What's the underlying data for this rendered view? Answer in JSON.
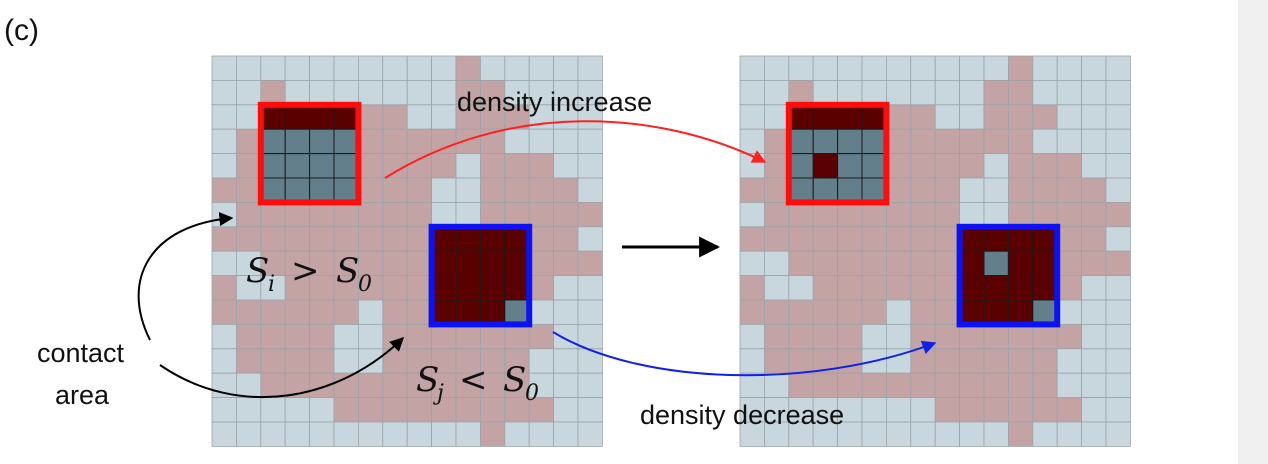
{
  "panel_label": "(c)",
  "labels": {
    "density_increase": "density increase",
    "density_decrease": "density decrease",
    "contact_line1": "contact",
    "contact_line2": "area",
    "cond_i": {
      "S": "S",
      "sub": "i",
      "op": ">",
      "S0": "S",
      "sub0": "0"
    },
    "cond_j": {
      "S": "S",
      "sub": "j",
      "op": "<",
      "S0": "S",
      "sub0": "0"
    }
  },
  "colors": {
    "empty": "#c8d7de",
    "material": "#c3a3a4",
    "void_in_box": "#637f8c",
    "dense": "#5a0000",
    "grid_line": "#9aa4a8",
    "box_red": "#ff0d0d",
    "box_blue": "#0b12f5",
    "arrow_red": "#ff2020",
    "arrow_blue": "#1020e8",
    "arrow_black": "#000000"
  },
  "grid": {
    "cols": 16,
    "rows": 16,
    "left_map": [
      "EEEEEEEEEEMEEEEE",
      "EEMEEEEEEEMMEEEE",
      "EEMMEEMMEEMMMEEE",
      "EMMMEEMMMMMMEEEE",
      "EMMMMMMMMMEMMMEE",
      "MMMMMMMMMEEMMMME",
      "EMMMMMMMMEEMMMMM",
      "MMMMMMMMMMEMMMME",
      "EEMMMMMMMMMMMMMM",
      "MEEMMMMMMMMMMMEE",
      "MMMMMMEMMMMMMEEE",
      "EMMMMEEMMMMMMMEE",
      "EMMMMEEMMMMMMEEE",
      "EEMMMMMMMMMMMEEE",
      "EEEEEMMMMMMMMMEE",
      "EEEEEEEEEEEMEEEE"
    ],
    "right_map": [
      "EEEEEEEEEEEMEEEE",
      "EEMEEEEEEEMMEEEE",
      "EEMMEEMMEEMMMEEE",
      "EMMMEEMMMMMMEEEE",
      "EMMMMMMMMMEMMMEE",
      "MMMMMMMMMEEMMMME",
      "EMMMMMMMMEEMMMMM",
      "MMMMMMMMMMEMMMME",
      "EEMMMMMMMMMMMMMM",
      "MEEMMMMMMMMMMMEE",
      "MMMMMMEMMMMMMEEE",
      "EMMMMEEMMMMMMMEE",
      "EMMMMEEMMMMMMEEE",
      "EEMMMMMMMMMMMEEE",
      "EEEEEEEEMMMMMMEE",
      "EEEEEEEEEEEMEEEE"
    ],
    "box_red_left": {
      "col": 2,
      "row": 2,
      "size": 4,
      "cells": [
        "DDDD",
        "VVVV",
        "VVVV",
        "VVVV"
      ]
    },
    "box_blue_left": {
      "col": 9,
      "row": 7,
      "size": 4,
      "cells": [
        "DDDD",
        "DDDD",
        "DDDD",
        "DDDV"
      ]
    },
    "box_red_right": {
      "col": 2,
      "row": 2,
      "size": 4,
      "cells": [
        "DDDD",
        "VVVV",
        "VDVV",
        "VVVV"
      ]
    },
    "box_blue_right": {
      "col": 9,
      "row": 7,
      "size": 4,
      "cells": [
        "DDDD",
        "DVDD",
        "DDDD",
        "DDDV"
      ]
    }
  }
}
